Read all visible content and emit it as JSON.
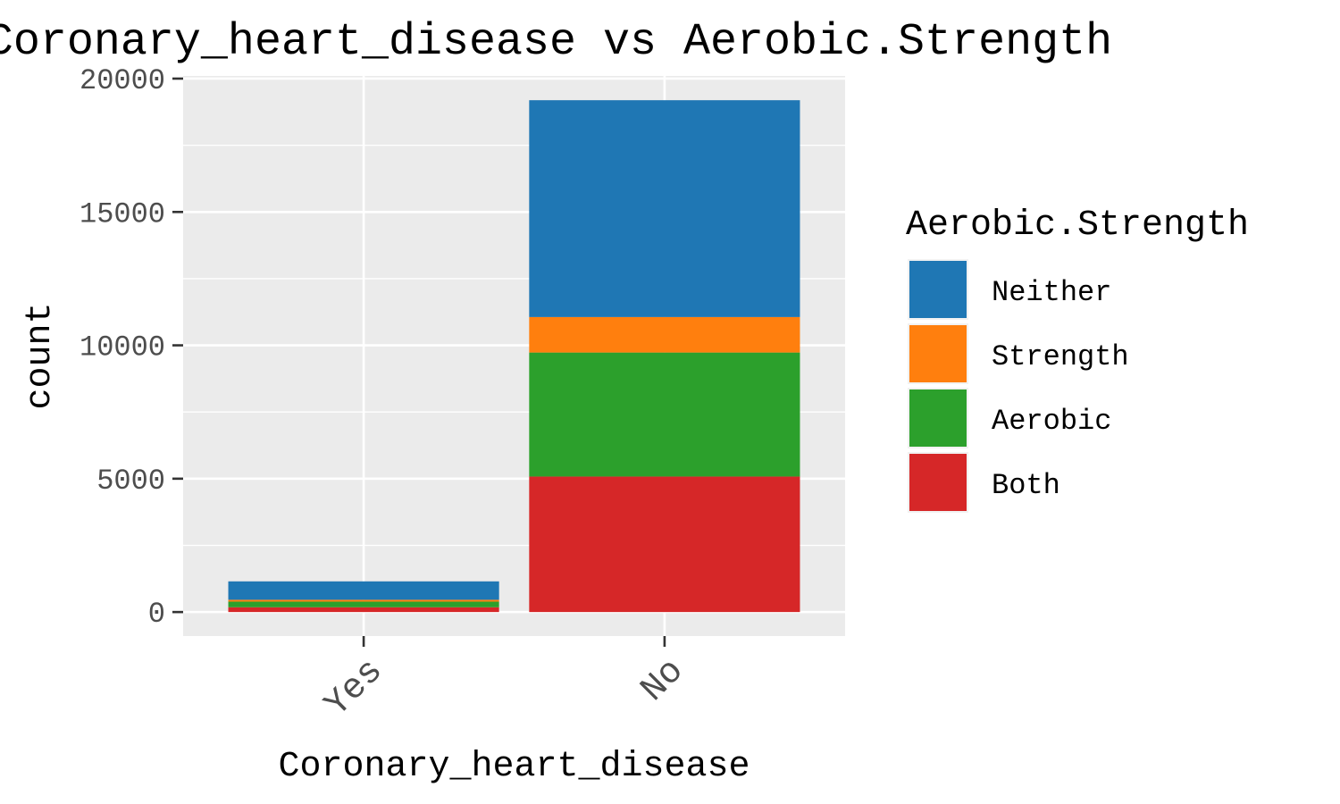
{
  "chart_data": {
    "type": "bar",
    "stacked": true,
    "title": "Coronary_heart_disease vs Aerobic.Strength",
    "xlabel": "Coronary_heart_disease",
    "ylabel": "count",
    "categories": [
      "Yes",
      "No"
    ],
    "ylim": [
      -900,
      20100
    ],
    "yticks": [
      0,
      5000,
      10000,
      15000,
      20000
    ],
    "ytick_labels": [
      "0",
      "5000",
      "10000",
      "15000",
      "20000"
    ],
    "grid": true,
    "legend": {
      "title": "Aerobic.Strength",
      "position": "right",
      "order": [
        "Neither",
        "Strength",
        "Aerobic",
        "Both"
      ]
    },
    "series": [
      {
        "name": "Both",
        "color": "#d62728",
        "values": [
          180,
          5080
        ]
      },
      {
        "name": "Aerobic",
        "color": "#2ca02c",
        "values": [
          210,
          4650
        ]
      },
      {
        "name": "Strength",
        "color": "#ff7f0e",
        "values": [
          70,
          1330
        ]
      },
      {
        "name": "Neither",
        "color": "#1f77b4",
        "values": [
          690,
          8130
        ]
      }
    ]
  }
}
